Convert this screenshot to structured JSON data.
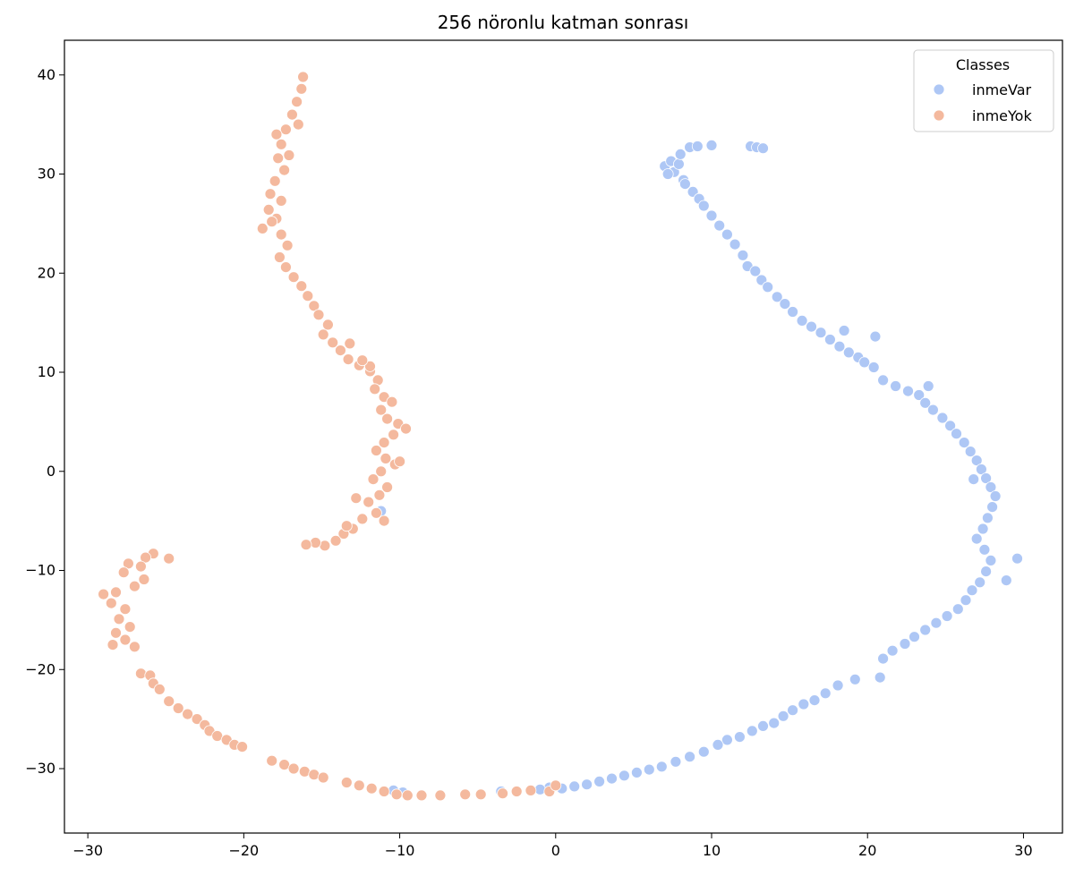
{
  "chart_data": {
    "type": "scatter",
    "title": "256 nöronlu katman sonrası",
    "xlabel": "",
    "ylabel": "",
    "xlim": [
      -31.5,
      32.5
    ],
    "ylim": [
      -36.5,
      43.5
    ],
    "x_ticks": [
      -30,
      -20,
      -10,
      0,
      10,
      20,
      30
    ],
    "y_ticks": [
      -30,
      -20,
      -10,
      0,
      10,
      20,
      30,
      40
    ],
    "grid": false,
    "legend": {
      "title": "Classes",
      "position": "top-right",
      "entries": [
        "inmeVar",
        "inmeYok"
      ]
    },
    "series": [
      {
        "name": "inmeVar",
        "color": "#aec7f5",
        "points": [
          [
            7.0,
            30.8
          ],
          [
            7.4,
            31.3
          ],
          [
            7.6,
            30.2
          ],
          [
            7.9,
            31.0
          ],
          [
            8.2,
            29.4
          ],
          [
            7.2,
            30.0
          ],
          [
            8.0,
            32.0
          ],
          [
            8.6,
            32.7
          ],
          [
            9.1,
            32.8
          ],
          [
            10.0,
            32.9
          ],
          [
            12.5,
            32.8
          ],
          [
            12.9,
            32.7
          ],
          [
            13.3,
            32.6
          ],
          [
            8.3,
            29.0
          ],
          [
            8.8,
            28.2
          ],
          [
            9.2,
            27.5
          ],
          [
            9.5,
            26.8
          ],
          [
            10.0,
            25.8
          ],
          [
            10.5,
            24.8
          ],
          [
            11.0,
            23.9
          ],
          [
            11.5,
            22.9
          ],
          [
            12.0,
            21.8
          ],
          [
            12.3,
            20.7
          ],
          [
            12.8,
            20.2
          ],
          [
            13.2,
            19.3
          ],
          [
            13.6,
            18.6
          ],
          [
            14.2,
            17.6
          ],
          [
            14.7,
            16.9
          ],
          [
            15.2,
            16.1
          ],
          [
            15.8,
            15.2
          ],
          [
            16.4,
            14.6
          ],
          [
            17.0,
            14.0
          ],
          [
            17.6,
            13.3
          ],
          [
            18.2,
            12.6
          ],
          [
            18.8,
            12.0
          ],
          [
            19.4,
            11.5
          ],
          [
            19.8,
            11.0
          ],
          [
            20.4,
            10.5
          ],
          [
            20.5,
            13.6
          ],
          [
            21.0,
            9.2
          ],
          [
            21.8,
            8.6
          ],
          [
            22.6,
            8.1
          ],
          [
            23.3,
            7.7
          ],
          [
            23.7,
            6.9
          ],
          [
            24.2,
            6.2
          ],
          [
            24.8,
            5.4
          ],
          [
            25.3,
            4.6
          ],
          [
            25.7,
            3.8
          ],
          [
            26.2,
            2.9
          ],
          [
            26.6,
            2.0
          ],
          [
            27.0,
            1.1
          ],
          [
            27.3,
            0.2
          ],
          [
            27.6,
            -0.7
          ],
          [
            27.9,
            -1.6
          ],
          [
            28.2,
            -2.5
          ],
          [
            28.0,
            -3.6
          ],
          [
            27.7,
            -4.7
          ],
          [
            27.4,
            -5.8
          ],
          [
            27.0,
            -6.8
          ],
          [
            27.5,
            -7.9
          ],
          [
            27.9,
            -9.0
          ],
          [
            27.6,
            -10.1
          ],
          [
            27.2,
            -11.2
          ],
          [
            26.7,
            -12.0
          ],
          [
            26.3,
            -13.0
          ],
          [
            25.8,
            -13.9
          ],
          [
            25.1,
            -14.6
          ],
          [
            24.4,
            -15.3
          ],
          [
            23.7,
            -16.0
          ],
          [
            23.0,
            -16.7
          ],
          [
            22.4,
            -17.4
          ],
          [
            21.6,
            -18.1
          ],
          [
            21.0,
            -18.9
          ],
          [
            20.8,
            -20.8
          ],
          [
            19.2,
            -21.0
          ],
          [
            18.1,
            -21.6
          ],
          [
            17.3,
            -22.4
          ],
          [
            16.6,
            -23.1
          ],
          [
            15.9,
            -23.5
          ],
          [
            15.2,
            -24.1
          ],
          [
            14.6,
            -24.7
          ],
          [
            14.0,
            -25.4
          ],
          [
            13.3,
            -25.7
          ],
          [
            12.6,
            -26.2
          ],
          [
            11.8,
            -26.8
          ],
          [
            11.0,
            -27.1
          ],
          [
            10.4,
            -27.6
          ],
          [
            9.5,
            -28.3
          ],
          [
            8.6,
            -28.8
          ],
          [
            7.7,
            -29.3
          ],
          [
            6.8,
            -29.8
          ],
          [
            6.0,
            -30.1
          ],
          [
            5.2,
            -30.4
          ],
          [
            4.4,
            -30.7
          ],
          [
            3.6,
            -31.0
          ],
          [
            2.8,
            -31.3
          ],
          [
            2.0,
            -31.6
          ],
          [
            1.2,
            -31.8
          ],
          [
            0.4,
            -32.0
          ],
          [
            -0.4,
            -31.9
          ],
          [
            -1.0,
            -32.1
          ],
          [
            -3.5,
            -32.3
          ],
          [
            -9.8,
            -32.4
          ],
          [
            -10.4,
            -32.2
          ],
          [
            -11.2,
            -4.0
          ],
          [
            23.9,
            8.6
          ],
          [
            26.8,
            -0.8
          ],
          [
            29.6,
            -8.8
          ],
          [
            28.9,
            -11.0
          ],
          [
            18.5,
            14.2
          ]
        ]
      },
      {
        "name": "inmeYok",
        "color": "#f4b99e",
        "points": [
          [
            -16.2,
            39.8
          ],
          [
            -16.3,
            38.6
          ],
          [
            -16.6,
            37.3
          ],
          [
            -16.9,
            36.0
          ],
          [
            -17.3,
            34.5
          ],
          [
            -17.6,
            33.0
          ],
          [
            -17.8,
            31.6
          ],
          [
            -17.4,
            30.4
          ],
          [
            -18.0,
            29.3
          ],
          [
            -18.3,
            28.0
          ],
          [
            -17.6,
            27.3
          ],
          [
            -18.4,
            26.4
          ],
          [
            -17.9,
            25.5
          ],
          [
            -18.8,
            24.5
          ],
          [
            -17.6,
            23.9
          ],
          [
            -17.2,
            22.8
          ],
          [
            -17.7,
            21.6
          ],
          [
            -17.3,
            20.6
          ],
          [
            -16.8,
            19.6
          ],
          [
            -16.3,
            18.7
          ],
          [
            -15.9,
            17.7
          ],
          [
            -15.5,
            16.7
          ],
          [
            -15.2,
            15.8
          ],
          [
            -14.6,
            14.8
          ],
          [
            -14.9,
            13.8
          ],
          [
            -14.3,
            13.0
          ],
          [
            -13.8,
            12.2
          ],
          [
            -13.3,
            11.3
          ],
          [
            -12.6,
            10.7
          ],
          [
            -11.9,
            10.1
          ],
          [
            -11.4,
            9.2
          ],
          [
            -11.6,
            8.3
          ],
          [
            -11.0,
            7.5
          ],
          [
            -10.5,
            7.0
          ],
          [
            -11.2,
            6.2
          ],
          [
            -10.8,
            5.3
          ],
          [
            -10.1,
            4.8
          ],
          [
            -9.6,
            4.3
          ],
          [
            -10.4,
            3.7
          ],
          [
            -11.0,
            2.9
          ],
          [
            -11.5,
            2.1
          ],
          [
            -10.9,
            1.3
          ],
          [
            -10.3,
            0.7
          ],
          [
            -10.0,
            1.0
          ],
          [
            -11.2,
            0.0
          ],
          [
            -11.7,
            -0.8
          ],
          [
            -10.8,
            -1.6
          ],
          [
            -11.3,
            -2.4
          ],
          [
            -12.0,
            -3.1
          ],
          [
            -12.8,
            -2.7
          ],
          [
            -11.5,
            -4.2
          ],
          [
            -11.0,
            -5.0
          ],
          [
            -12.4,
            -4.8
          ],
          [
            -13.0,
            -5.8
          ],
          [
            -13.6,
            -6.3
          ],
          [
            -14.1,
            -7.0
          ],
          [
            -14.8,
            -7.5
          ],
          [
            -15.4,
            -7.2
          ],
          [
            -16.0,
            -7.4
          ],
          [
            -13.4,
            -5.5
          ],
          [
            -24.8,
            -8.8
          ],
          [
            -25.8,
            -8.3
          ],
          [
            -26.3,
            -8.7
          ],
          [
            -26.6,
            -9.6
          ],
          [
            -27.4,
            -9.3
          ],
          [
            -27.7,
            -10.2
          ],
          [
            -26.4,
            -10.9
          ],
          [
            -27.0,
            -11.6
          ],
          [
            -28.2,
            -12.2
          ],
          [
            -28.5,
            -13.3
          ],
          [
            -29.0,
            -12.4
          ],
          [
            -27.6,
            -13.9
          ],
          [
            -28.0,
            -14.9
          ],
          [
            -27.3,
            -15.7
          ],
          [
            -28.2,
            -16.3
          ],
          [
            -27.6,
            -17.0
          ],
          [
            -28.4,
            -17.5
          ],
          [
            -27.0,
            -17.7
          ],
          [
            -26.6,
            -20.4
          ],
          [
            -26.0,
            -20.6
          ],
          [
            -25.8,
            -21.4
          ],
          [
            -25.4,
            -22.0
          ],
          [
            -24.8,
            -23.2
          ],
          [
            -24.2,
            -23.9
          ],
          [
            -23.6,
            -24.5
          ],
          [
            -23.0,
            -25.0
          ],
          [
            -22.5,
            -25.6
          ],
          [
            -22.2,
            -26.2
          ],
          [
            -21.7,
            -26.7
          ],
          [
            -21.1,
            -27.1
          ],
          [
            -20.6,
            -27.6
          ],
          [
            -20.1,
            -27.8
          ],
          [
            -18.2,
            -29.2
          ],
          [
            -17.4,
            -29.6
          ],
          [
            -16.8,
            -30.0
          ],
          [
            -16.1,
            -30.3
          ],
          [
            -15.5,
            -30.6
          ],
          [
            -14.9,
            -30.9
          ],
          [
            -13.4,
            -31.4
          ],
          [
            -12.6,
            -31.7
          ],
          [
            -11.8,
            -32.0
          ],
          [
            -11.0,
            -32.3
          ],
          [
            -10.2,
            -32.6
          ],
          [
            -9.5,
            -32.7
          ],
          [
            -8.6,
            -32.7
          ],
          [
            -7.4,
            -32.7
          ],
          [
            -5.8,
            -32.6
          ],
          [
            -4.8,
            -32.6
          ],
          [
            -3.4,
            -32.5
          ],
          [
            -2.5,
            -32.3
          ],
          [
            -1.6,
            -32.2
          ],
          [
            -0.4,
            -32.3
          ],
          [
            0.0,
            -31.7
          ],
          [
            -11.9,
            10.6
          ],
          [
            -12.4,
            11.2
          ],
          [
            -13.2,
            12.9
          ],
          [
            -16.5,
            35.0
          ],
          [
            -17.9,
            34.0
          ],
          [
            -18.2,
            25.2
          ],
          [
            -17.1,
            31.9
          ]
        ]
      }
    ]
  }
}
